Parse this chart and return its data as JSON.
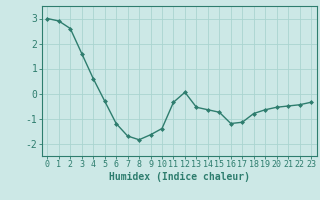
{
  "x": [
    0,
    1,
    2,
    3,
    4,
    5,
    6,
    7,
    8,
    9,
    10,
    11,
    12,
    13,
    14,
    15,
    16,
    17,
    18,
    19,
    20,
    21,
    22,
    23
  ],
  "y": [
    3.0,
    2.9,
    2.6,
    1.6,
    0.6,
    -0.3,
    -1.2,
    -1.7,
    -1.85,
    -1.65,
    -1.4,
    -0.35,
    0.05,
    -0.55,
    -0.65,
    -0.75,
    -1.2,
    -1.15,
    -0.8,
    -0.65,
    -0.55,
    -0.5,
    -0.45,
    -0.35
  ],
  "xlabel": "Humidex (Indice chaleur)",
  "ylim": [
    -2.5,
    3.5
  ],
  "xlim": [
    -0.5,
    23.5
  ],
  "yticks": [
    -2,
    -1,
    0,
    1,
    2,
    3
  ],
  "xticks": [
    0,
    1,
    2,
    3,
    4,
    5,
    6,
    7,
    8,
    9,
    10,
    11,
    12,
    13,
    14,
    15,
    16,
    17,
    18,
    19,
    20,
    21,
    22,
    23
  ],
  "line_color": "#2e7d6e",
  "marker_color": "#2e7d6e",
  "bg_color": "#cce8e6",
  "grid_color": "#aad4d0",
  "axis_color": "#2e7d6e",
  "tick_label_color": "#2e7d6e",
  "xlabel_color": "#2e7d6e",
  "xlabel_fontsize": 7,
  "tick_fontsize": 6,
  "ytick_fontsize": 7
}
